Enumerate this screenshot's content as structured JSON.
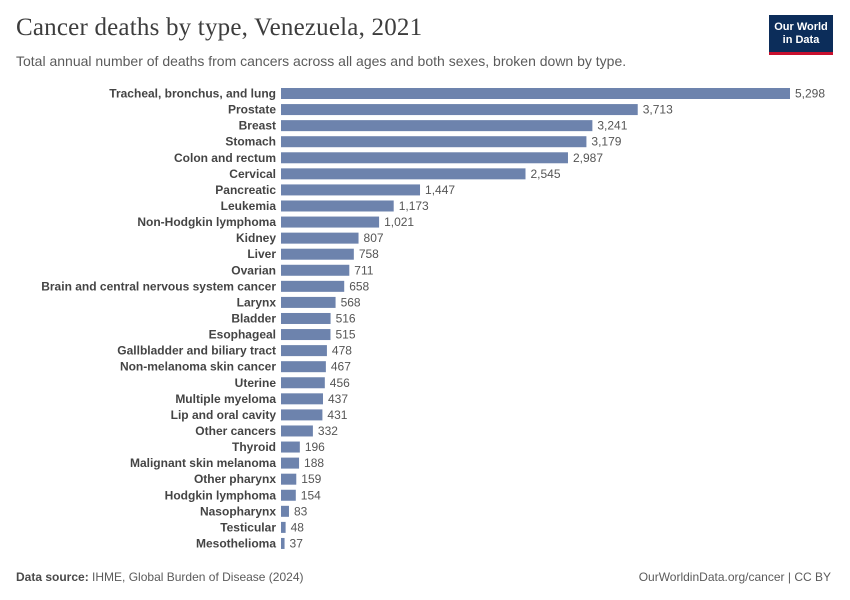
{
  "header": {
    "title": "Cancer deaths by type, Venezuela, 2021",
    "subtitle": "Total annual number of deaths from cancers across all ages and both sexes, broken down by type."
  },
  "logo": {
    "line1": "Our World",
    "line2": "in Data"
  },
  "footer": {
    "source_label": "Data source:",
    "source_text": "IHME, Global Burden of Disease (2024)",
    "credit": "OurWorldinData.org/cancer | CC BY"
  },
  "colors": {
    "bar": "#6d83ad",
    "logo_bg": "#0c2d5a",
    "logo_accent": "#c8102e"
  },
  "chart_data": {
    "type": "bar",
    "orientation": "horizontal",
    "categories": [
      "Tracheal, bronchus, and lung",
      "Prostate",
      "Breast",
      "Stomach",
      "Colon and rectum",
      "Cervical",
      "Pancreatic",
      "Leukemia",
      "Non-Hodgkin lymphoma",
      "Kidney",
      "Liver",
      "Ovarian",
      "Brain and central nervous system cancer",
      "Larynx",
      "Bladder",
      "Esophageal",
      "Gallbladder and biliary tract",
      "Non-melanoma skin cancer",
      "Uterine",
      "Multiple myeloma",
      "Lip and oral cavity",
      "Other cancers",
      "Thyroid",
      "Malignant skin melanoma",
      "Other pharynx",
      "Hodgkin lymphoma",
      "Nasopharynx",
      "Testicular",
      "Mesothelioma"
    ],
    "values": [
      5298,
      3713,
      3241,
      3179,
      2987,
      2545,
      1447,
      1173,
      1021,
      807,
      758,
      711,
      658,
      568,
      516,
      515,
      478,
      467,
      456,
      437,
      431,
      332,
      196,
      188,
      159,
      154,
      83,
      48,
      37
    ],
    "value_labels": [
      "5,298",
      "3,713",
      "3,241",
      "3,179",
      "2,987",
      "2,545",
      "1,447",
      "1,173",
      "1,021",
      "807",
      "758",
      "711",
      "658",
      "568",
      "516",
      "515",
      "478",
      "467",
      "456",
      "437",
      "431",
      "332",
      "196",
      "188",
      "159",
      "154",
      "83",
      "48",
      "37"
    ],
    "title": "Cancer deaths by type, Venezuela, 2021",
    "xlabel": "",
    "ylabel": "",
    "grid": false
  }
}
